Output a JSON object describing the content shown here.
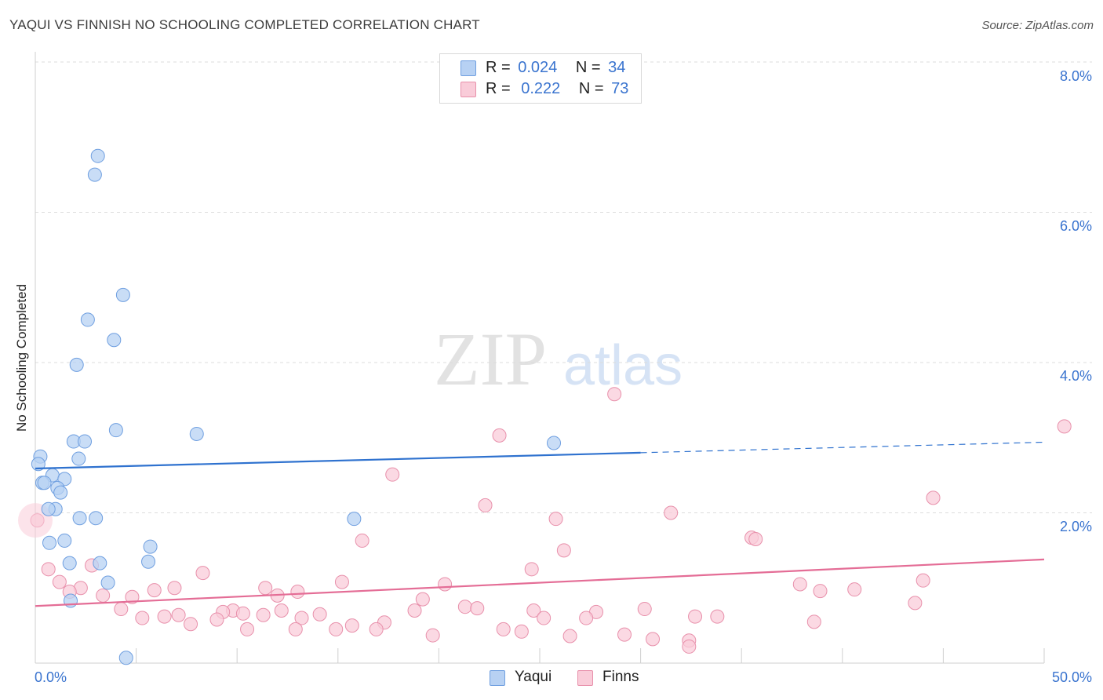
{
  "header": {
    "title": "YAQUI VS FINNISH NO SCHOOLING COMPLETED CORRELATION CHART",
    "source": "Source: ZipAtlas.com"
  },
  "watermark": {
    "zip": "ZIP",
    "atlas": "atlas"
  },
  "legend": {
    "series": [
      {
        "r_label": "R =",
        "r_value": "0.024",
        "n_label": "N =",
        "n_value": "34",
        "color": "#a9c8f0",
        "border": "#6f9fe0"
      },
      {
        "r_label": "R =",
        "r_value": "0.222",
        "n_label": "N =",
        "n_value": "73",
        "color": "#f7c3d2",
        "border": "#e48aa7"
      }
    ],
    "bottom": [
      {
        "label": "Yaqui"
      },
      {
        "label": "Finns"
      }
    ]
  },
  "colors": {
    "yaqui_fill": "#b7d1f3",
    "yaqui_stroke": "#6f9fe0",
    "yaqui_line": "#2f72cf",
    "finns_fill": "#f9ccd9",
    "finns_stroke": "#e890ab",
    "finns_line": "#e46d96",
    "tick_text": "#3a74cf",
    "grid": "#dcdcdc"
  },
  "chart_data": {
    "type": "scatter",
    "title": "YAQUI VS FINNISH NO SCHOOLING COMPLETED CORRELATION CHART",
    "xlabel": "",
    "ylabel": "No Schooling Completed",
    "xlim": [
      0,
      50
    ],
    "ylim": [
      0,
      8
    ],
    "x_tick_labels": [
      "0.0%",
      "50.0%"
    ],
    "y_ticks": [
      2,
      4,
      6,
      8
    ],
    "y_tick_labels": [
      "2.0%",
      "4.0%",
      "6.0%",
      "8.0%"
    ],
    "grid": true,
    "legend_position": "top-center",
    "series": [
      {
        "name": "Yaqui",
        "points": [
          [
            3.1,
            6.75
          ],
          [
            2.95,
            6.5
          ],
          [
            4.35,
            4.9
          ],
          [
            2.6,
            4.57
          ],
          [
            3.9,
            4.3
          ],
          [
            2.05,
            3.97
          ],
          [
            4.0,
            3.1
          ],
          [
            8.0,
            3.05
          ],
          [
            1.9,
            2.95
          ],
          [
            2.45,
            2.95
          ],
          [
            25.7,
            2.93
          ],
          [
            0.25,
            2.75
          ],
          [
            2.15,
            2.72
          ],
          [
            0.15,
            2.65
          ],
          [
            0.85,
            2.5
          ],
          [
            1.45,
            2.45
          ],
          [
            0.35,
            2.4
          ],
          [
            0.45,
            2.4
          ],
          [
            1.1,
            2.33
          ],
          [
            1.25,
            2.27
          ],
          [
            1.0,
            2.05
          ],
          [
            0.65,
            2.05
          ],
          [
            2.2,
            1.93
          ],
          [
            3.0,
            1.93
          ],
          [
            15.8,
            1.92
          ],
          [
            1.45,
            1.63
          ],
          [
            0.7,
            1.6
          ],
          [
            5.7,
            1.55
          ],
          [
            1.7,
            1.33
          ],
          [
            3.2,
            1.33
          ],
          [
            5.6,
            1.35
          ],
          [
            3.6,
            1.07
          ],
          [
            1.75,
            0.83
          ],
          [
            4.5,
            0.07
          ]
        ],
        "trend": {
          "x": [
            0,
            30
          ],
          "y": [
            2.59,
            2.8
          ],
          "dashed_to": [
            50,
            2.94
          ]
        }
      },
      {
        "name": "Finns",
        "points": [
          [
            28.7,
            3.58
          ],
          [
            51.0,
            3.15
          ],
          [
            23.0,
            3.03
          ],
          [
            17.7,
            2.51
          ],
          [
            44.5,
            2.2
          ],
          [
            22.3,
            2.1
          ],
          [
            31.5,
            2.0
          ],
          [
            25.8,
            1.92
          ],
          [
            0.1,
            1.9
          ],
          [
            16.2,
            1.63
          ],
          [
            35.5,
            1.67
          ],
          [
            35.7,
            1.65
          ],
          [
            26.2,
            1.5
          ],
          [
            24.6,
            1.25
          ],
          [
            0.65,
            1.25
          ],
          [
            2.8,
            1.3
          ],
          [
            8.3,
            1.2
          ],
          [
            1.2,
            1.08
          ],
          [
            15.2,
            1.08
          ],
          [
            20.3,
            1.05
          ],
          [
            37.9,
            1.05
          ],
          [
            44.0,
            1.1
          ],
          [
            40.6,
            0.98
          ],
          [
            38.9,
            0.96
          ],
          [
            6.9,
            1.0
          ],
          [
            5.9,
            0.97
          ],
          [
            2.25,
            1.0
          ],
          [
            11.4,
            1.0
          ],
          [
            13.0,
            0.95
          ],
          [
            1.7,
            0.95
          ],
          [
            3.35,
            0.9
          ],
          [
            4.8,
            0.88
          ],
          [
            12.0,
            0.9
          ],
          [
            19.2,
            0.85
          ],
          [
            30.2,
            0.72
          ],
          [
            43.6,
            0.8
          ],
          [
            4.25,
            0.72
          ],
          [
            9.8,
            0.7
          ],
          [
            9.3,
            0.68
          ],
          [
            12.2,
            0.7
          ],
          [
            18.8,
            0.7
          ],
          [
            21.3,
            0.75
          ],
          [
            21.9,
            0.73
          ],
          [
            24.7,
            0.7
          ],
          [
            27.8,
            0.68
          ],
          [
            10.3,
            0.66
          ],
          [
            11.3,
            0.64
          ],
          [
            14.1,
            0.65
          ],
          [
            7.1,
            0.64
          ],
          [
            6.4,
            0.62
          ],
          [
            5.3,
            0.6
          ],
          [
            27.3,
            0.6
          ],
          [
            33.8,
            0.62
          ],
          [
            32.7,
            0.62
          ],
          [
            13.2,
            0.6
          ],
          [
            25.2,
            0.6
          ],
          [
            9.0,
            0.58
          ],
          [
            17.3,
            0.54
          ],
          [
            7.7,
            0.52
          ],
          [
            15.7,
            0.5
          ],
          [
            38.6,
            0.55
          ],
          [
            24.1,
            0.42
          ],
          [
            23.2,
            0.45
          ],
          [
            10.5,
            0.45
          ],
          [
            14.9,
            0.45
          ],
          [
            12.9,
            0.45
          ],
          [
            16.9,
            0.45
          ],
          [
            19.7,
            0.37
          ],
          [
            29.2,
            0.38
          ],
          [
            26.5,
            0.36
          ],
          [
            32.4,
            0.3
          ],
          [
            30.6,
            0.32
          ],
          [
            32.4,
            0.22
          ]
        ],
        "trend": {
          "x": [
            0,
            50
          ],
          "y": [
            0.76,
            1.38
          ]
        }
      }
    ]
  }
}
